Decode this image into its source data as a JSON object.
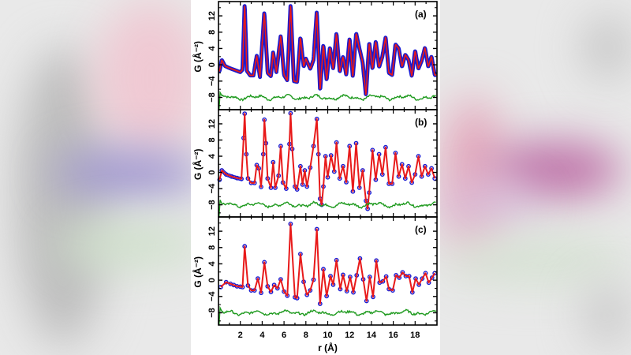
{
  "background": {
    "description": "blurred enlarged copy of the figure",
    "colors": {
      "left_blue": "#8f86c4",
      "pink": "#e6b8c8",
      "magenta": "#b55e9c",
      "green": "#c9dcc6",
      "grey": "#b8b8b8"
    }
  },
  "colors": {
    "data_marker": "#1a1ad0",
    "fit_line": "#e81a1a",
    "difference": "#1e9a1e",
    "axis": "#000000"
  },
  "chart_data": [
    {
      "type": "line",
      "panel_label": "(a)",
      "xlabel": "r (Å)",
      "ylabel": "G (Å⁻²)",
      "xlim": [
        0,
        20
      ],
      "ylim": [
        -11,
        15.5
      ],
      "yticks": [
        -8,
        -4,
        0,
        4,
        8,
        12
      ],
      "xticks": [
        2,
        4,
        6,
        8,
        10,
        12,
        14,
        16,
        18
      ],
      "marker_style": "dense",
      "difference_offset": -8,
      "series": [
        {
          "name": "G(r) data",
          "style": "blue open circles (dense)"
        },
        {
          "name": "G(r) fit",
          "style": "red line"
        },
        {
          "name": "difference",
          "style": "green line offset at -8"
        }
      ],
      "points": [
        [
          0.1,
          -1.5
        ],
        [
          0.3,
          1.2
        ],
        [
          0.6,
          -0.3
        ],
        [
          1.0,
          -0.8
        ],
        [
          1.5,
          -1.3
        ],
        [
          2.0,
          -1.8
        ],
        [
          2.2,
          -1.2
        ],
        [
          2.4,
          15.2
        ],
        [
          2.6,
          -1.5
        ],
        [
          2.9,
          -2.6
        ],
        [
          3.2,
          -2.6
        ],
        [
          3.5,
          2.2
        ],
        [
          3.8,
          -3.0
        ],
        [
          4.2,
          13.0
        ],
        [
          4.5,
          -2.0
        ],
        [
          4.8,
          -2.8
        ],
        [
          5.0,
          3.0
        ],
        [
          5.3,
          -1.8
        ],
        [
          5.7,
          7.2
        ],
        [
          6.0,
          -2.5
        ],
        [
          6.3,
          -3.8
        ],
        [
          6.6,
          15.0
        ],
        [
          6.9,
          -4.0
        ],
        [
          7.2,
          -4.2
        ],
        [
          7.5,
          6.8
        ],
        [
          7.8,
          -0.5
        ],
        [
          8.0,
          1.5
        ],
        [
          8.4,
          -1.0
        ],
        [
          8.7,
          1.2
        ],
        [
          9.0,
          13.2
        ],
        [
          9.3,
          -6.5
        ],
        [
          9.6,
          5.0
        ],
        [
          9.9,
          -3.8
        ],
        [
          10.2,
          4.3
        ],
        [
          10.5,
          -1.0
        ],
        [
          10.8,
          7.8
        ],
        [
          11.1,
          -1.8
        ],
        [
          11.4,
          2.0
        ],
        [
          11.7,
          -2.5
        ],
        [
          12.0,
          6.5
        ],
        [
          12.3,
          -3.0
        ],
        [
          12.6,
          7.8
        ],
        [
          12.9,
          4.0
        ],
        [
          13.2,
          0.5
        ],
        [
          13.5,
          -7.5
        ],
        [
          13.8,
          5.5
        ],
        [
          14.1,
          -1.0
        ],
        [
          14.4,
          5.8
        ],
        [
          14.7,
          -0.6
        ],
        [
          15.0,
          2.0
        ],
        [
          15.3,
          6.8
        ],
        [
          15.6,
          -2.0
        ],
        [
          15.9,
          -2.5
        ],
        [
          16.2,
          5.0
        ],
        [
          16.5,
          4.0
        ],
        [
          16.8,
          -0.5
        ],
        [
          17.1,
          2.5
        ],
        [
          17.4,
          1.2
        ],
        [
          17.7,
          -2.8
        ],
        [
          18.0,
          3.5
        ],
        [
          18.3,
          -1.0
        ],
        [
          18.6,
          1.0
        ],
        [
          18.9,
          4.2
        ],
        [
          19.2,
          -0.5
        ],
        [
          19.5,
          2.0
        ],
        [
          19.8,
          -2.5
        ]
      ]
    },
    {
      "type": "line",
      "panel_label": "(b)",
      "xlim": [
        0,
        20
      ],
      "ylim": [
        -11,
        15.5
      ],
      "yticks": [
        -8,
        -4,
        0,
        4,
        8,
        12
      ],
      "marker_style": "medium",
      "difference_offset": -8,
      "points": [
        [
          0.1,
          -1.8
        ],
        [
          0.3,
          0.5
        ],
        [
          0.7,
          -0.5
        ],
        [
          1.2,
          -1.0
        ],
        [
          1.7,
          -1.4
        ],
        [
          2.1,
          -1.6
        ],
        [
          2.3,
          8.5
        ],
        [
          2.4,
          14.5
        ],
        [
          2.55,
          4.5
        ],
        [
          2.7,
          -1.5
        ],
        [
          3.0,
          -2.6
        ],
        [
          3.3,
          -2.6
        ],
        [
          3.5,
          1.8
        ],
        [
          3.7,
          1.0
        ],
        [
          3.9,
          -3.6
        ],
        [
          4.1,
          4.5
        ],
        [
          4.2,
          13.0
        ],
        [
          4.35,
          7.2
        ],
        [
          4.5,
          -1.5
        ],
        [
          4.8,
          -3.8
        ],
        [
          5.0,
          2.5
        ],
        [
          5.2,
          -3.8
        ],
        [
          5.5,
          -0.8
        ],
        [
          5.7,
          6.5
        ],
        [
          5.9,
          -2.5
        ],
        [
          6.2,
          -4.0
        ],
        [
          6.5,
          7.0
        ],
        [
          6.6,
          14.6
        ],
        [
          6.75,
          5.8
        ],
        [
          7.0,
          -3.5
        ],
        [
          7.2,
          -4.2
        ],
        [
          7.5,
          1.5
        ],
        [
          7.7,
          -3.0
        ],
        [
          7.9,
          0.5
        ],
        [
          8.1,
          -3.5
        ],
        [
          8.4,
          1.2
        ],
        [
          8.7,
          6.5
        ],
        [
          9.0,
          13.2
        ],
        [
          9.15,
          4.5
        ],
        [
          9.3,
          -6.5
        ],
        [
          9.45,
          -8.0
        ],
        [
          9.6,
          -3.5
        ],
        [
          9.8,
          4.0
        ],
        [
          10.0,
          -1.2
        ],
        [
          10.3,
          4.2
        ],
        [
          10.6,
          0.2
        ],
        [
          10.8,
          7.4
        ],
        [
          11.1,
          -1.5
        ],
        [
          11.4,
          1.5
        ],
        [
          11.7,
          -2.4
        ],
        [
          12.0,
          6.5
        ],
        [
          12.3,
          -4.7
        ],
        [
          12.6,
          7.2
        ],
        [
          12.9,
          -3.8
        ],
        [
          13.2,
          0.5
        ],
        [
          13.5,
          -7.0
        ],
        [
          13.65,
          -9.0
        ],
        [
          13.8,
          -5.0
        ],
        [
          14.1,
          5.5
        ],
        [
          14.4,
          -1.8
        ],
        [
          14.7,
          4.5
        ],
        [
          15.0,
          -0.5
        ],
        [
          15.3,
          6.2
        ],
        [
          15.6,
          -2.8
        ],
        [
          15.9,
          -2.8
        ],
        [
          16.2,
          4.8
        ],
        [
          16.5,
          -1.0
        ],
        [
          16.8,
          2.0
        ],
        [
          17.1,
          -1.5
        ],
        [
          17.4,
          1.5
        ],
        [
          17.7,
          -2.5
        ],
        [
          18.0,
          -0.5
        ],
        [
          18.3,
          4.0
        ],
        [
          18.6,
          -1.0
        ],
        [
          18.9,
          1.5
        ],
        [
          19.2,
          -0.5
        ],
        [
          19.5,
          1.0
        ],
        [
          19.8,
          -1.5
        ]
      ]
    },
    {
      "type": "line",
      "panel_label": "(c)",
      "xlim": [
        0,
        20
      ],
      "ylim": [
        -11,
        15.5
      ],
      "yticks": [
        -8,
        -4,
        0,
        4,
        8,
        12
      ],
      "marker_style": "sparse",
      "difference_offset": -8,
      "points": [
        [
          0.2,
          -1.7
        ],
        [
          0.7,
          -0.5
        ],
        [
          1.1,
          -0.9
        ],
        [
          1.4,
          -1.2
        ],
        [
          1.7,
          -1.5
        ],
        [
          2.0,
          -1.6
        ],
        [
          2.2,
          -1.7
        ],
        [
          2.4,
          8.3
        ],
        [
          2.7,
          -1.3
        ],
        [
          3.0,
          -2.5
        ],
        [
          3.3,
          -2.5
        ],
        [
          3.6,
          0.4
        ],
        [
          3.9,
          -3.1
        ],
        [
          4.2,
          4.4
        ],
        [
          4.5,
          -1.5
        ],
        [
          4.8,
          -2.9
        ],
        [
          5.1,
          -1.2
        ],
        [
          5.4,
          -2.0
        ],
        [
          5.7,
          0.2
        ],
        [
          6.0,
          -2.8
        ],
        [
          6.3,
          -3.8
        ],
        [
          6.6,
          13.8
        ],
        [
          7.0,
          -4.2
        ],
        [
          7.2,
          -4.4
        ],
        [
          7.5,
          6.4
        ],
        [
          7.8,
          -0.4
        ],
        [
          8.1,
          -3.6
        ],
        [
          8.4,
          -2.5
        ],
        [
          8.7,
          0.1
        ],
        [
          9.0,
          12.5
        ],
        [
          9.3,
          -5.8
        ],
        [
          9.6,
          2.7
        ],
        [
          9.9,
          -3.9
        ],
        [
          10.25,
          1.0
        ],
        [
          10.5,
          -1.1
        ],
        [
          10.8,
          4.9
        ],
        [
          11.15,
          -2.2
        ],
        [
          11.4,
          1.3
        ],
        [
          11.75,
          -2.7
        ],
        [
          12.05,
          0.8
        ],
        [
          12.35,
          -3.0
        ],
        [
          12.65,
          1.2
        ],
        [
          12.95,
          5.3
        ],
        [
          13.25,
          0.2
        ],
        [
          13.55,
          -5.1
        ],
        [
          13.85,
          0.8
        ],
        [
          14.15,
          -4.1
        ],
        [
          14.45,
          4.8
        ],
        [
          14.75,
          -0.6
        ],
        [
          15.05,
          -0.3
        ],
        [
          15.35,
          0.9
        ],
        [
          15.6,
          -2.2
        ],
        [
          15.95,
          -2.5
        ],
        [
          16.25,
          1.2
        ],
        [
          16.55,
          0.6
        ],
        [
          16.85,
          1.9
        ],
        [
          17.15,
          1.0
        ],
        [
          17.45,
          1.0
        ],
        [
          17.75,
          -3.0
        ],
        [
          18.05,
          0.4
        ],
        [
          18.35,
          -1.1
        ],
        [
          18.65,
          0.4
        ],
        [
          18.95,
          1.7
        ],
        [
          19.25,
          -0.6
        ],
        [
          19.55,
          0.6
        ],
        [
          19.8,
          1.7
        ]
      ]
    }
  ],
  "axes": {
    "ylabel": "G (Å⁻²)",
    "xlabel": "r (Å)",
    "ytick_labels": [
      "-8",
      "-4",
      "0",
      "4",
      "8",
      "12"
    ],
    "xtick_labels": [
      "2",
      "4",
      "6",
      "8",
      "10",
      "12",
      "14",
      "16",
      "18"
    ]
  }
}
